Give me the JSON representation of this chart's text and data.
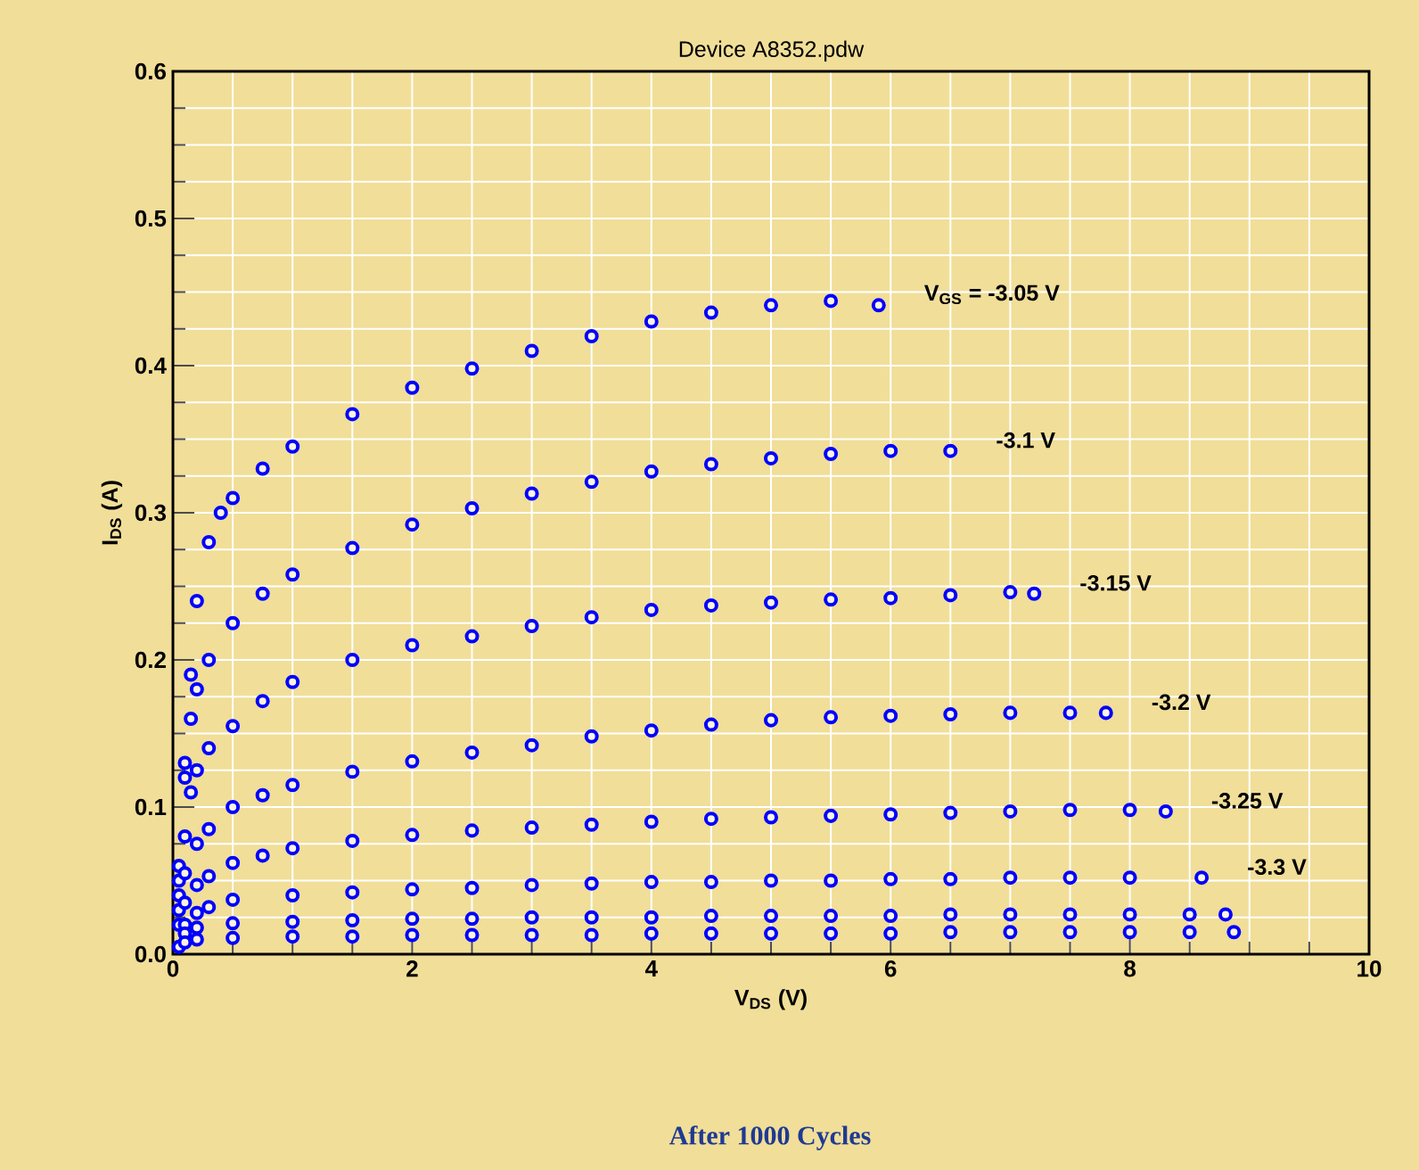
{
  "chart_data": {
    "type": "scatter",
    "title": "Device A8352.pdw",
    "xlabel": "V$_{DS}$ (V)",
    "ylabel": "I$_{DS}$ (A)",
    "xlim": [
      0,
      10
    ],
    "ylim": [
      0,
      0.6
    ],
    "xticks": [
      0,
      2,
      4,
      6,
      8,
      10
    ],
    "yticks": [
      {
        "value": 0,
        "label": "0.0"
      },
      0.1,
      0.2,
      0.3,
      0.4,
      0.5,
      0.6
    ],
    "grid": true,
    "marker": "circle",
    "annotations": [
      "After 1000 Cycles"
    ],
    "series": [
      {
        "name": "V$_{GS}$ = -3.05 V",
        "color": "#0000ff",
        "x": [
          0.05,
          0.1,
          0.15,
          0.2,
          0.3,
          0.4,
          0.5,
          0.75,
          1,
          1.5,
          2,
          2.5,
          3,
          3.5,
          4,
          4.5,
          5,
          5.5,
          5.9
        ],
        "values": [
          0.06,
          0.13,
          0.19,
          0.24,
          0.28,
          0.3,
          0.31,
          0.33,
          0.345,
          0.367,
          0.385,
          0.398,
          0.41,
          0.42,
          0.43,
          0.436,
          0.441,
          0.444,
          0.441
        ]
      },
      {
        "name": "-3.1 V",
        "color": "#0000ff",
        "x": [
          0.05,
          0.1,
          0.15,
          0.2,
          0.3,
          0.5,
          0.75,
          1,
          1.5,
          2,
          2.5,
          3,
          3.5,
          4,
          4.5,
          5,
          5.5,
          6,
          6.5
        ],
        "values": [
          0.05,
          0.12,
          0.16,
          0.18,
          0.2,
          0.225,
          0.245,
          0.258,
          0.276,
          0.292,
          0.303,
          0.313,
          0.321,
          0.328,
          0.333,
          0.337,
          0.34,
          0.342,
          0.342
        ]
      },
      {
        "name": "-3.15 V",
        "color": "#0000ff",
        "x": [
          0.05,
          0.1,
          0.15,
          0.2,
          0.3,
          0.5,
          0.75,
          1,
          1.5,
          2,
          2.5,
          3,
          3.5,
          4,
          4.5,
          5,
          5.5,
          6,
          6.5,
          7,
          7.2
        ],
        "values": [
          0.04,
          0.08,
          0.11,
          0.125,
          0.14,
          0.155,
          0.172,
          0.185,
          0.2,
          0.21,
          0.216,
          0.223,
          0.229,
          0.234,
          0.237,
          0.239,
          0.241,
          0.242,
          0.244,
          0.246,
          0.245
        ]
      },
      {
        "name": "-3.2 V",
        "color": "#0000ff",
        "x": [
          0.05,
          0.1,
          0.2,
          0.3,
          0.5,
          0.75,
          1,
          1.5,
          2,
          2.5,
          3,
          3.5,
          4,
          4.5,
          5,
          5.5,
          6,
          6.5,
          7,
          7.5,
          7.8
        ],
        "values": [
          0.03,
          0.055,
          0.075,
          0.085,
          0.1,
          0.108,
          0.115,
          0.124,
          0.131,
          0.137,
          0.142,
          0.148,
          0.152,
          0.156,
          0.159,
          0.161,
          0.162,
          0.163,
          0.164,
          0.164,
          0.164
        ]
      },
      {
        "name": "-3.25 V",
        "color": "#0000ff",
        "x": [
          0.05,
          0.1,
          0.2,
          0.3,
          0.5,
          0.75,
          1,
          1.5,
          2,
          2.5,
          3,
          3.5,
          4,
          4.5,
          5,
          5.5,
          6,
          6.5,
          7,
          7.5,
          8,
          8.3
        ],
        "values": [
          0.02,
          0.035,
          0.047,
          0.053,
          0.062,
          0.067,
          0.072,
          0.077,
          0.081,
          0.084,
          0.086,
          0.088,
          0.09,
          0.092,
          0.093,
          0.094,
          0.095,
          0.096,
          0.097,
          0.098,
          0.098,
          0.097
        ]
      },
      {
        "name": "-3.3 V",
        "color": "#0000ff",
        "x": [
          0.1,
          0.2,
          0.3,
          0.5,
          1,
          1.5,
          2,
          2.5,
          3,
          3.5,
          4,
          4.5,
          5,
          5.5,
          6,
          6.5,
          7,
          7.5,
          8,
          8.6
        ],
        "values": [
          0.02,
          0.028,
          0.032,
          0.037,
          0.04,
          0.042,
          0.044,
          0.045,
          0.047,
          0.048,
          0.049,
          0.049,
          0.05,
          0.05,
          0.051,
          0.051,
          0.052,
          0.052,
          0.052,
          0.052
        ]
      },
      {
        "color": "#0000ff",
        "x": [
          0.1,
          0.2,
          0.5,
          1,
          1.5,
          2,
          2.5,
          3,
          3.5,
          4,
          4.5,
          5,
          5.5,
          6,
          6.5,
          7,
          7.5,
          8,
          8.5,
          8.8
        ],
        "values": [
          0.014,
          0.018,
          0.021,
          0.022,
          0.023,
          0.024,
          0.024,
          0.025,
          0.025,
          0.025,
          0.026,
          0.026,
          0.026,
          0.026,
          0.027,
          0.027,
          0.027,
          0.027,
          0.027,
          0.027
        ]
      },
      {
        "color": "#0000ff",
        "x": [
          0.05,
          0.1,
          0.2,
          0.5,
          1,
          1.5,
          2,
          2.5,
          3,
          3.5,
          4,
          4.5,
          5,
          5.5,
          6,
          6.5,
          7,
          7.5,
          8,
          8.5,
          8.87
        ],
        "values": [
          0.005,
          0.008,
          0.01,
          0.011,
          0.012,
          0.012,
          0.013,
          0.013,
          0.013,
          0.013,
          0.014,
          0.014,
          0.014,
          0.014,
          0.014,
          0.015,
          0.015,
          0.015,
          0.015,
          0.015,
          0.015
        ]
      }
    ]
  }
}
